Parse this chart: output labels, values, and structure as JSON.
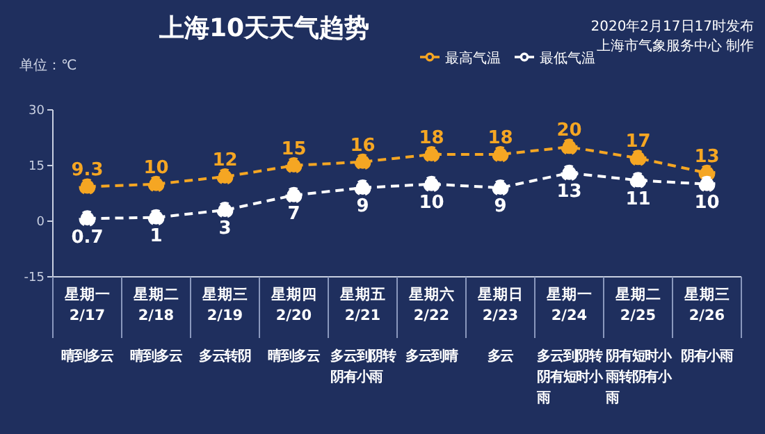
{
  "chart_data": {
    "type": "line",
    "title": "上海10天天气趋势",
    "annotations": [
      "单位：℃",
      "2020年2月17日17时发布",
      "上海市气象服务中心 制作"
    ],
    "categories": [
      "星期一\n2/17\n晴到多云",
      "星期二\n2/18\n晴到多云",
      "星期三\n2/19\n多云转阴",
      "星期四\n2/20\n晴到多云",
      "星期五\n2/21\n多云到阴转阴有小雨",
      "星期六\n2/22\n多云到晴",
      "星期日\n2/23\n多云",
      "星期一\n2/24\n多云到阴转阴有短时小雨",
      "星期二\n2/25\n阴有短时小雨转阴有小雨",
      "星期三\n2/26\n阴有小雨"
    ],
    "series": [
      {
        "name": "最高气温",
        "color": "#f5a623",
        "values": [
          9.3,
          10,
          12,
          15,
          16,
          18,
          18,
          20,
          17,
          13
        ]
      },
      {
        "name": "最低气温",
        "color": "#ffffff",
        "values": [
          0.7,
          1,
          3,
          7,
          9,
          10,
          9,
          13,
          11,
          10
        ]
      }
    ],
    "ylim": [
      -15,
      30
    ],
    "yticks": [
      -15,
      0,
      15,
      30
    ],
    "grid": false,
    "legend": "top",
    "marker": "circle",
    "line_style": "dashed",
    "data_labels": true
  }
}
